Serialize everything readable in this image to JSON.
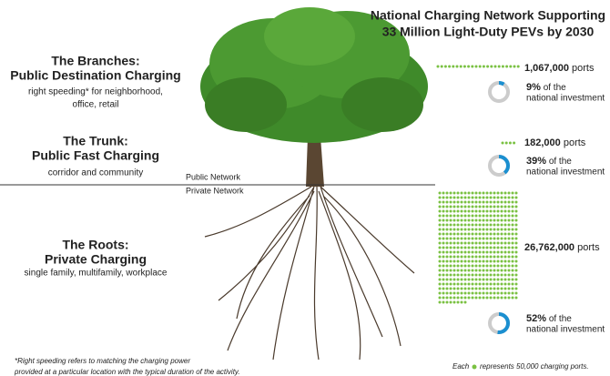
{
  "header": {
    "title": [
      "National Charging Network Supporting",
      "33 Million Light-Duty PEVs by 2030"
    ]
  },
  "sections": [
    {
      "title": [
        "The Branches:",
        "Public Destination Charging"
      ],
      "description": [
        "right speeding* for neighborhood,",
        "office, retail"
      ],
      "ports": {
        "value": 1067000,
        "label": "1,067,000"
      },
      "ports_unit": "ports",
      "investment": {
        "value": 9,
        "label": "9%"
      },
      "investment_text": [
        "of the",
        "national investment"
      ]
    },
    {
      "title": [
        "The Trunk:",
        "Public Fast Charging"
      ],
      "description": [
        "corridor and community"
      ],
      "ports": {
        "value": 182000,
        "label": "182,000"
      },
      "ports_unit": "ports",
      "investment": {
        "value": 39,
        "label": "39%"
      },
      "investment_text": [
        "of the",
        "national investment"
      ]
    },
    {
      "title": [
        "The Roots:",
        "Private Charging"
      ],
      "description": [
        "single family, multifamily, workplace"
      ],
      "ports": {
        "value": 26762000,
        "label": "26,762,000"
      },
      "ports_unit": "ports",
      "investment": {
        "value": 52,
        "label": "52%"
      },
      "investment_text": [
        "of the",
        "national investment"
      ]
    }
  ],
  "network_labels": [
    "Public Network",
    "Private Network"
  ],
  "footnote": [
    "*Right speeding refers to matching the charging power",
    "provided at a particular location with the typical duration of the activity."
  ],
  "legend": {
    "prefix": "Each",
    "suffix": "represents 50,000 charging ports.",
    "dot_value": 50000
  }
}
